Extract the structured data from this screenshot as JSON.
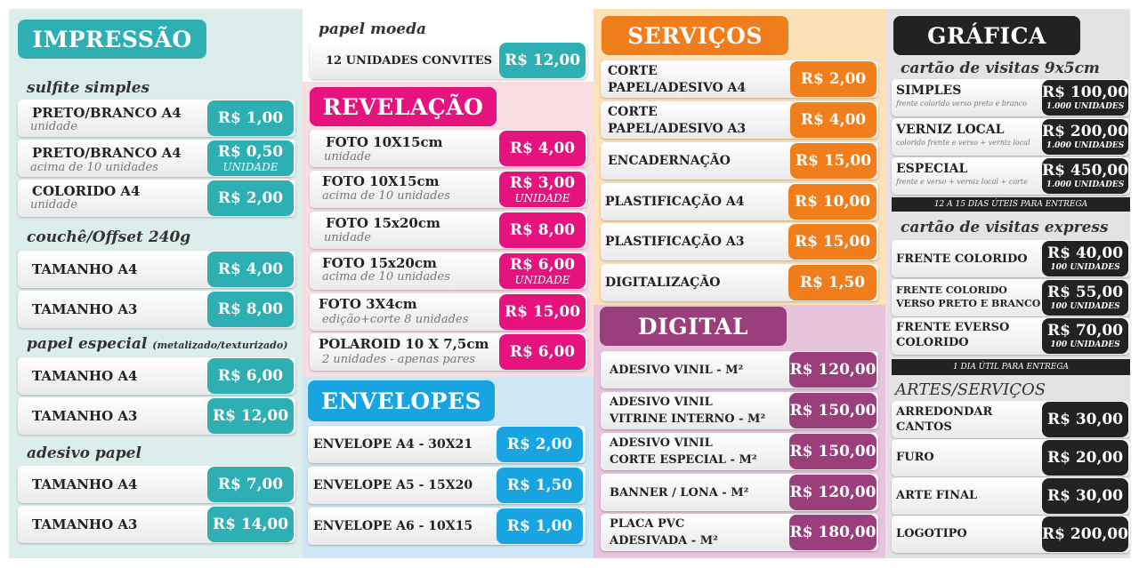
{
  "impressao": {
    "title": "IMPRESSÃO",
    "sulfite": {
      "label": "sulfite simples",
      "items": [
        {
          "name": "PRETO/BRANCO A4",
          "note": "unidade",
          "price": "R$ 1,00"
        },
        {
          "name": "PRETO/BRANCO A4",
          "note": "acima de 10 unidades",
          "price": "R$ 0,50",
          "unit": "UNIDADE"
        },
        {
          "name": "COLORIDO A4",
          "note": "unidade",
          "price": "R$ 2,00"
        }
      ]
    },
    "couche": {
      "label": "couchê/Offset 240g",
      "items": [
        {
          "name": "TAMANHO A4",
          "price": "R$ 4,00"
        },
        {
          "name": "TAMANHO A3",
          "price": "R$ 8,00"
        }
      ]
    },
    "papel_especial": {
      "label": "papel especial",
      "label_small": "(metalizado/texturizado)",
      "items": [
        {
          "name": "TAMANHO A4",
          "price": "R$ 6,00"
        },
        {
          "name": "TAMANHO A3",
          "price": "R$ 12,00"
        }
      ]
    },
    "adesivo": {
      "label": "adesivo papel",
      "items": [
        {
          "name": "TAMANHO A4",
          "price": "R$ 7,00"
        },
        {
          "name": "TAMANHO A3",
          "price": "R$ 14,00"
        }
      ]
    }
  },
  "papel_moeda": {
    "label": "papel moeda",
    "item": {
      "name": "12 UNIDADES CONVITES",
      "price": "R$ 12,00"
    }
  },
  "revelacao": {
    "title": "REVELAÇÃO",
    "items": [
      {
        "name": "FOTO 10X15cm",
        "note": "unidade",
        "price": "R$ 4,00"
      },
      {
        "name": "FOTO 10X15cm",
        "note": "acima de 10 unidades",
        "price": "R$ 3,00",
        "unit": "UNIDADE"
      },
      {
        "name": "FOTO 15x20cm",
        "note": "unidade",
        "price": "R$ 8,00"
      },
      {
        "name": "FOTO 15x20cm",
        "note": "acima de 10 unidades",
        "price": "R$ 6,00",
        "unit": "UNIDADE"
      },
      {
        "name": "FOTO 3X4cm",
        "note": "edição+corte 8 unidades",
        "price": "R$ 15,00"
      },
      {
        "name": "POLAROID 10 X 7,5cm",
        "note": "2 unidades - apenas pares",
        "price": "R$ 6,00"
      }
    ]
  },
  "envelopes": {
    "title": "ENVELOPES",
    "items": [
      {
        "name": "ENVELOPE A4 - 30X21",
        "price": "R$ 2,00"
      },
      {
        "name": "ENVELOPE A5 - 15X20",
        "price": "R$ 1,50"
      },
      {
        "name": "ENVELOPE A6 - 10X15",
        "price": "R$ 1,00"
      }
    ]
  },
  "servicos": {
    "title": "SERVIÇOS",
    "items": [
      {
        "name1": "CORTE",
        "name2": "PAPEL/ADESIVO A4",
        "price": "R$ 2,00"
      },
      {
        "name1": "CORTE",
        "name2": "PAPEL/ADESIVO A3",
        "price": "R$ 4,00"
      },
      {
        "name1": "ENCADERNAÇÃO",
        "price": "R$ 15,00"
      },
      {
        "name1": "PLASTIFICAÇÃO A4",
        "price": "R$ 10,00"
      },
      {
        "name1": "PLASTIFICAÇÃO A3",
        "price": "R$ 15,00"
      },
      {
        "name1": "DIGITALIZAÇÃO",
        "price": "R$ 1,50"
      }
    ]
  },
  "digital": {
    "title": "DIGITAL",
    "items": [
      {
        "name1": "ADESIVO VINIL - M²",
        "price": "R$ 120,00"
      },
      {
        "name1": "ADESIVO VINIL",
        "name2": "VITRINE INTERNO - M²",
        "price": "R$ 150,00"
      },
      {
        "name1": "ADESIVO VINIL",
        "name2": "CORTE ESPECIAL - M²",
        "price": "R$ 150,00"
      },
      {
        "name1": "BANNER / LONA - M²",
        "price": "R$ 120,00"
      },
      {
        "name1": "PLACA PVC",
        "name2": "ADESIVADA - M²",
        "price": "R$ 180,00"
      }
    ]
  },
  "grafica": {
    "title": "GRÁFICA",
    "cartao": {
      "label": "cartão de visitas 9x5cm",
      "items": [
        {
          "name": "SIMPLES",
          "note": "frente colorido verso preto e branco",
          "price": "R$ 100,00",
          "qty": "1.000 UNIDADES"
        },
        {
          "name": "VERNIZ LOCAL",
          "note": "colorido frente e verso + verniz local",
          "price": "R$ 200,00",
          "qty": "1.000 UNIDADES"
        },
        {
          "name": "ESPECIAL",
          "note": "frente e verso + verniz local + corte",
          "price": "R$ 450,00",
          "qty": "1.000 UNIDADES"
        }
      ],
      "bar": "12 A 15 DIAS ÚTEIS PARA ENTREGA"
    },
    "express": {
      "label": "cartão de visitas express",
      "items": [
        {
          "name1": "FRENTE COLORIDO",
          "price": "R$ 40,00",
          "qty": "100 UNIDADES"
        },
        {
          "name1": "FRENTE COLORIDO",
          "name2": "VERSO PRETO E BRANCO",
          "price": "R$ 55,00",
          "qty": "100 UNIDADES"
        },
        {
          "name1": "FRENTE EVERSO",
          "name2": "COLORIDO",
          "price": "R$ 70,00",
          "qty": "100 UNIDADES"
        }
      ],
      "bar": "1 DIA ÚTIL PARA ENTREGA"
    },
    "artes": {
      "label": "ARTES/SERVIÇOS",
      "items": [
        {
          "name1": "ARREDONDAR",
          "name2": "CANTOS",
          "price": "R$ 30,00"
        },
        {
          "name1": "FURO",
          "price": "R$ 20,00"
        },
        {
          "name1": "ARTE FINAL",
          "price": "R$ 30,00"
        },
        {
          "name1": "LOGOTIPO",
          "price": "R$ 200,00"
        }
      ]
    }
  }
}
